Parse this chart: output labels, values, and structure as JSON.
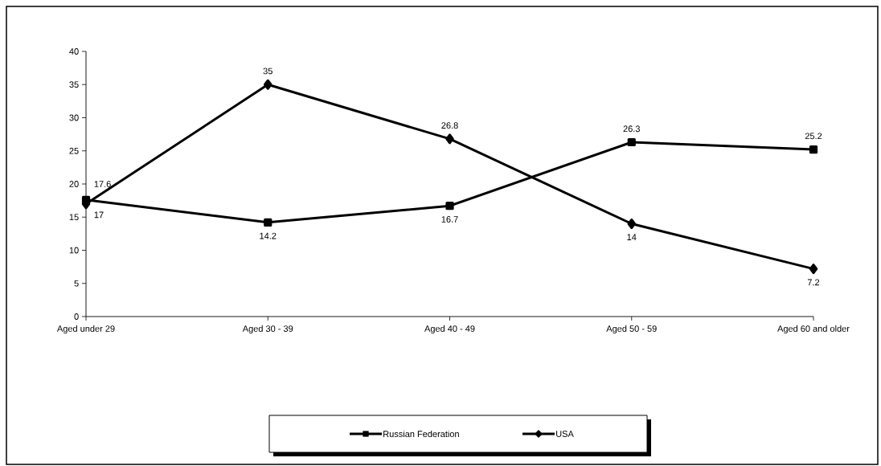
{
  "chart_data": {
    "type": "line",
    "categories": [
      "Aged under 29",
      "Aged 30 - 39",
      "Aged 40 - 49",
      "Aged 50 - 59",
      "Aged 60 and older"
    ],
    "series": [
      {
        "name": "Russian Federation",
        "color": "#000000",
        "marker": "square",
        "values": [
          17.6,
          14.2,
          16.7,
          26.3,
          25.2
        ]
      },
      {
        "name": "USA",
        "color": "#000000",
        "marker": "diamond",
        "values": [
          17,
          35,
          26.8,
          14,
          7.2
        ]
      }
    ],
    "ylim": [
      0,
      40
    ],
    "yticks": [
      0,
      5,
      10,
      15,
      20,
      25,
      30,
      35,
      40
    ],
    "grid": false,
    "legend": "bottom",
    "data_labels": true,
    "line_style": "solid"
  }
}
